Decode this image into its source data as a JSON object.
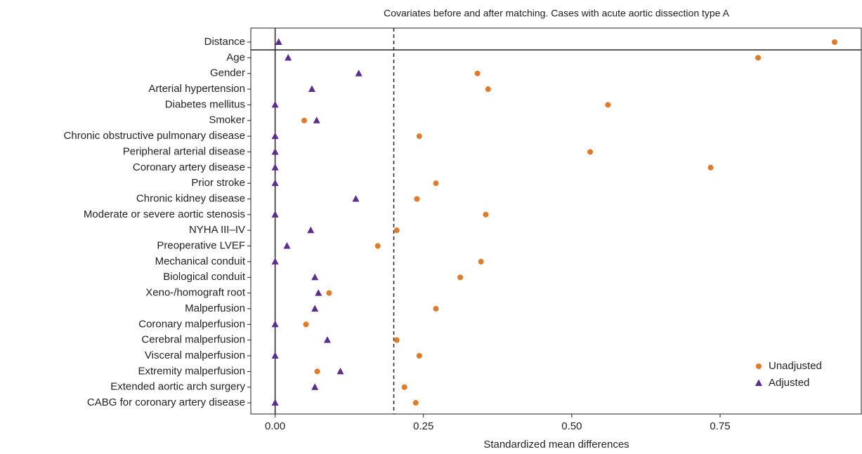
{
  "chart_data": {
    "type": "scatter",
    "title": "Covariates before and after matching. Cases with acute aortic dissection type A",
    "x_label": "Standardized mean differences",
    "categories": [
      "Distance",
      "Age",
      "Gender",
      "Arterial hypertension",
      "Diabetes mellitus",
      "Smoker",
      "Chronic obstructive pulmonary disease",
      "Peripheral arterial disease",
      "Coronary artery disease",
      "Prior stroke",
      "Chronic kidney disease",
      "Moderate or severe aortic stenosis",
      "NYHA III–IV",
      "Preoperative LVEF",
      "Mechanical conduit",
      "Biological conduit",
      "Xeno-/homograft root",
      "Malperfusion",
      "Coronary malperfusion",
      "Cerebral malperfusion",
      "Visceral malperfusion",
      "Extremity malperfusion",
      "Extended aortic arch surgery",
      "CABG for coronary artery disease"
    ],
    "series": [
      {
        "name": "Unadjusted",
        "color": "#e07b2a",
        "marker": "circle",
        "values": [
          0.943,
          0.814,
          0.341,
          0.359,
          0.561,
          0.049,
          0.243,
          0.531,
          0.734,
          0.271,
          0.239,
          0.355,
          0.205,
          0.173,
          0.347,
          0.312,
          0.091,
          0.271,
          0.052,
          0.205,
          0.243,
          0.071,
          0.218,
          0.237
        ]
      },
      {
        "name": "Adjusted",
        "color": "#5b2d8e",
        "marker": "triangle",
        "values": [
          0.006,
          0.022,
          0.141,
          0.062,
          0,
          0.07,
          0,
          0,
          0,
          0,
          0.136,
          0,
          0.06,
          0.02,
          0,
          0.067,
          0.073,
          0.067,
          0,
          0.088,
          0,
          0.11,
          0.067,
          0
        ]
      }
    ],
    "xlim": [
      -0.041,
      0.988
    ],
    "xticks": [
      {
        "value": 0,
        "label": "0.00"
      },
      {
        "value": 0.25,
        "label": "0.25"
      },
      {
        "value": 0.5,
        "label": "0.50"
      },
      {
        "value": 0.75,
        "label": "0.75"
      }
    ],
    "reference_lines": [
      {
        "value": 0,
        "style": "solid"
      },
      {
        "value": 0.2,
        "style": "dashed"
      }
    ],
    "legend": "bottom-right"
  }
}
